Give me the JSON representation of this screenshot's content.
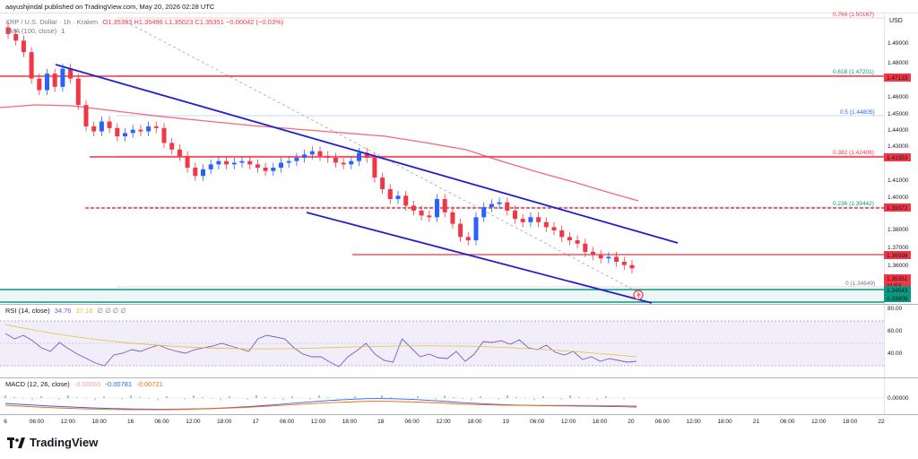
{
  "top_bar": {
    "byline": "aayushjindal published on TradingView.com, May 20, 2026 02:28 UTC"
  },
  "symbol": {
    "name": "XRP / U.S. Dollar · 1h · Kraken",
    "ohlc": "O1.35393 H1.35496 L1.35023 C1.35351 −0.00042 (−0.03%)",
    "sma": "SMA (100, close)",
    "sma_value": "1"
  },
  "price_axis": {
    "currency": "USD",
    "ticks": [
      "1.49000",
      "1.48000",
      "1.46000",
      "1.45000",
      "1.44000",
      "1.43000",
      "1.41000",
      "1.40000",
      "1.38000",
      "1.37000",
      "1.36000"
    ],
    "highlights": [
      {
        "text": "1.47133",
        "color": "#f23645"
      },
      {
        "text": "1.42353",
        "color": "#f23645"
      },
      {
        "text": "1.39372",
        "color": "#f23645"
      },
      {
        "text": "1.36598",
        "color": "#f23645"
      },
      {
        "text": "1.35351",
        "color": "#f23645"
      },
      {
        "text": "31:53",
        "color": "#f23645"
      },
      {
        "text": "1.34543",
        "color": "#089981"
      },
      {
        "text": "1.33809",
        "color": "#089981"
      }
    ]
  },
  "fib_levels": [
    {
      "label": "0.764 (1.50167)",
      "color": "#f23645"
    },
    {
      "label": "0.618 (1.47201)",
      "color": "#089981"
    },
    {
      "label": "0.5 (1.44805)",
      "color": "#2962ff"
    },
    {
      "label": "0.382 (1.42408)",
      "color": "#f23645"
    },
    {
      "label": "0.236 (1.39442)",
      "color": "#089981"
    },
    {
      "label": "0 (1.34649)",
      "color": "#787b86"
    }
  ],
  "rsi": {
    "label": "RSI (14, close)",
    "value": "34.76",
    "value2": "37.18",
    "flags": "∅ ∅ ∅ ∅",
    "ticks": [
      "80.00",
      "60.00",
      "40.00"
    ]
  },
  "macd": {
    "label": "MACD (12, 26, close)",
    "v1": "-0.00060",
    "v2": "-0.00781",
    "v3": "-0.00721",
    "ticks": [
      "0.00000"
    ]
  },
  "time_axis": [
    "6",
    "06:00",
    "12:00",
    "18:00",
    "16",
    "06:00",
    "12:00",
    "18:00",
    "17",
    "06:00",
    "12:00",
    "18:00",
    "18",
    "06:00",
    "12:00",
    "18:00",
    "19",
    "06:00",
    "12:00",
    "18:00",
    "20",
    "06:00",
    "12:00",
    "18:00",
    "21",
    "06:00",
    "12:00",
    "18:00",
    "22"
  ],
  "brand": {
    "name": "TradingView"
  },
  "colors": {
    "up": "#2962ff",
    "down": "#f23645",
    "sma": "#f23645",
    "channel": "#1f1fd1",
    "rsi_band": "#7e57c2",
    "macd_line": "#2962ff",
    "signal_line": "#ff6d00"
  },
  "chart_data": {
    "type": "candlestick",
    "timeframe": "1h",
    "y_axis_range": [
      1.332,
      1.508
    ],
    "price_series_approx": [
      1.495,
      1.491,
      1.484,
      1.468,
      1.461,
      1.471,
      1.463,
      1.474,
      1.468,
      1.452,
      1.439,
      1.436,
      1.442,
      1.438,
      1.433,
      1.435,
      1.437,
      1.436,
      1.439,
      1.438,
      1.429,
      1.425,
      1.421,
      1.414,
      1.409,
      1.413,
      1.416,
      1.418,
      1.416,
      1.417,
      1.418,
      1.416,
      1.414,
      1.412,
      1.414,
      1.417,
      1.418,
      1.42,
      1.422,
      1.424,
      1.421,
      1.42,
      1.417,
      1.416,
      1.418,
      1.423,
      1.42,
      1.408,
      1.401,
      1.395,
      1.397,
      1.391,
      1.388,
      1.385,
      1.384,
      1.395,
      1.387,
      1.38,
      1.372,
      1.37,
      1.384,
      1.39,
      1.392,
      1.393,
      1.388,
      1.383,
      1.381,
      1.384,
      1.381,
      1.378,
      1.376,
      1.372,
      1.37,
      1.368,
      1.363,
      1.361,
      1.359,
      1.36,
      1.357,
      1.355,
      1.353
    ],
    "sma100_approx": [
      1.454,
      1.455,
      1.454,
      1.452,
      1.448,
      1.444,
      1.44,
      1.436,
      1.432,
      1.429,
      1.427,
      1.425,
      1.422,
      1.417,
      1.411,
      1.406,
      1.402,
      1.398
    ],
    "rsi_value": 34.76,
    "rsi_band": [
      30,
      70
    ],
    "macd_value": -0.0006
  }
}
